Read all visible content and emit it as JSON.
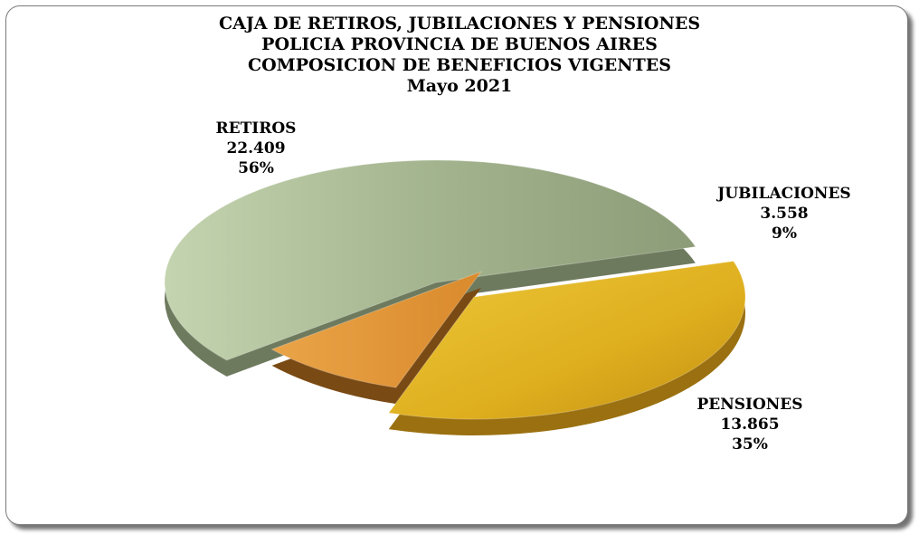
{
  "chart_data": {
    "type": "pie",
    "title": [
      "CAJA DE RETIROS, JUBILACIONES Y PENSIONES",
      "POLICIA PROVINCIA DE BUENOS AIRES",
      "COMPOSICION DE BENEFICIOS VIGENTES",
      "Mayo 2021"
    ],
    "slices": [
      {
        "label": "RETIROS",
        "value": 22409,
        "value_text": "22.409",
        "percent_text": "56%",
        "color": "#9fb08a",
        "exploded": false
      },
      {
        "label": "JUBILACIONES",
        "value": 3558,
        "value_text": "3.558",
        "percent_text": "9%",
        "color": "#e89a3c",
        "exploded": true
      },
      {
        "label": "PENSIONES",
        "value": 13865,
        "value_text": "13.865",
        "percent_text": "35%",
        "color": "#e2b422",
        "exploded": true
      }
    ],
    "style": "3d-exploded"
  }
}
